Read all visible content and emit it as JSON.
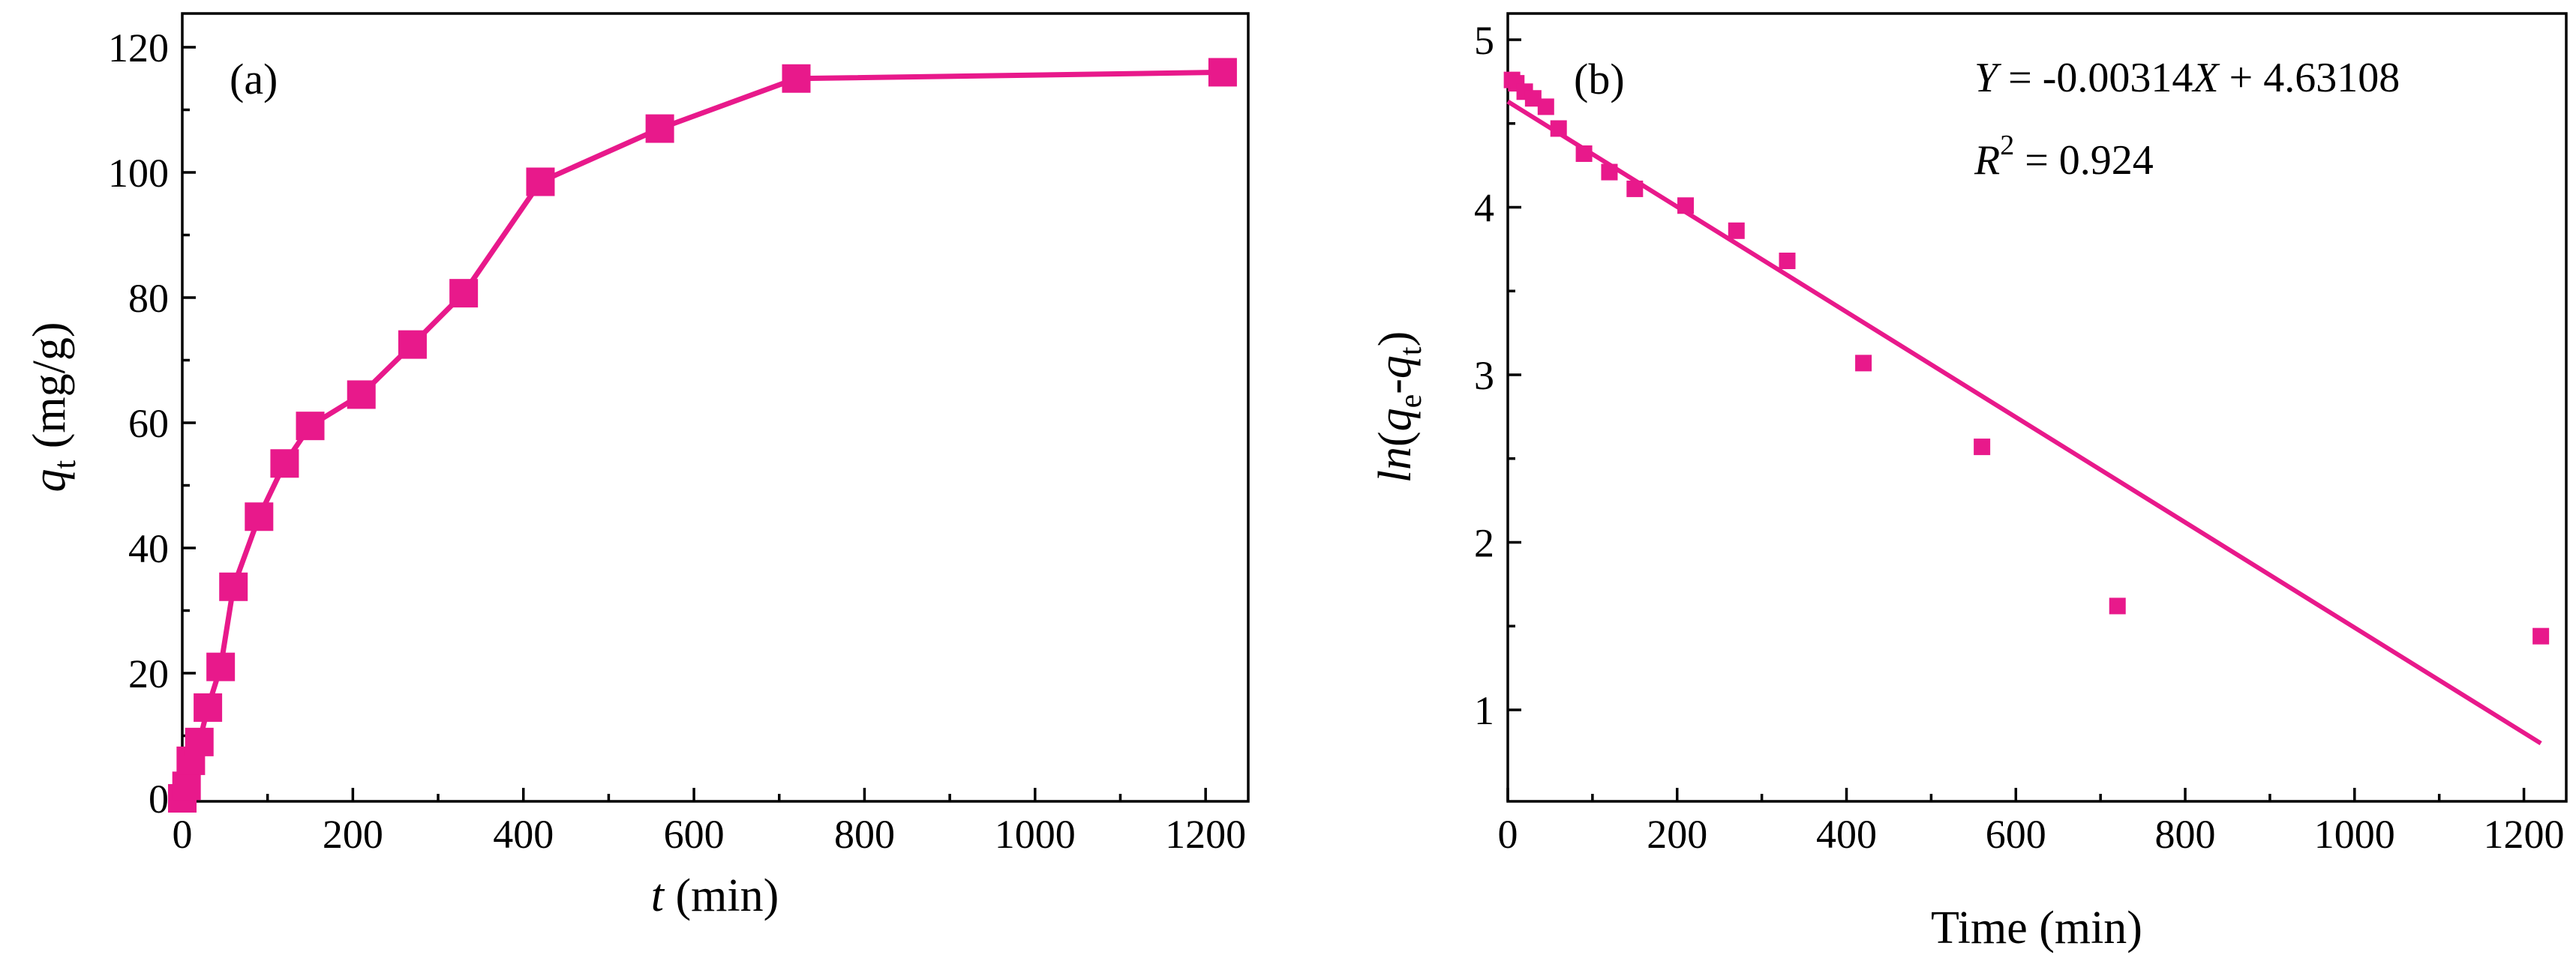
{
  "chart_data": [
    {
      "type": "line",
      "panel_label": "(a)",
      "series_color": "#E8198B",
      "marker": "square",
      "xlabel": {
        "var": "t",
        "rest": " (min)"
      },
      "ylabel": {
        "var": "q",
        "sub": "t",
        "rest": " (mg/g)"
      },
      "xlim": [
        0,
        1250
      ],
      "ylim": [
        0,
        120
      ],
      "xticks": [
        0,
        200,
        400,
        600,
        800,
        1000,
        1200
      ],
      "yticks": [
        0,
        20,
        40,
        60,
        80,
        100,
        120
      ],
      "xtick_labels": [
        "0",
        "200",
        "400",
        "600",
        "800",
        "1000",
        "1200"
      ],
      "ytick_labels": [
        "0",
        "20",
        "40",
        "60",
        "80",
        "100",
        "120"
      ],
      "x": [
        0,
        5,
        10,
        20,
        30,
        45,
        60,
        90,
        120,
        150,
        210,
        270,
        330,
        420,
        560,
        720,
        1220
      ],
      "y": [
        0,
        2,
        6,
        9,
        14.5,
        21,
        33.8,
        45,
        53.5,
        59.5,
        64.5,
        72.5,
        80.7,
        98.5,
        107,
        115,
        116
      ]
    },
    {
      "type": "scatter",
      "panel_label": "(b)",
      "series_color": "#E8198B",
      "marker": "square",
      "xlabel": "Time (min)",
      "ylabel": {
        "pre": "ln",
        "paren_open": "(",
        "var1": "q",
        "sub1": "e",
        "dash": "-",
        "var2": "q",
        "sub2": "t",
        "paren_close": ")"
      },
      "xlim": [
        0,
        1250
      ],
      "ylim": [
        0.5,
        5.2
      ],
      "xticks": [
        0,
        200,
        400,
        600,
        800,
        1000,
        1200
      ],
      "yticks": [
        1,
        2,
        3,
        4,
        5
      ],
      "xtick_labels": [
        "0",
        "200",
        "400",
        "600",
        "800",
        "1000",
        "1200"
      ],
      "ytick_labels": [
        "1",
        "2",
        "3",
        "4",
        "5"
      ],
      "x": [
        5,
        10,
        20,
        30,
        45,
        60,
        90,
        120,
        150,
        210,
        270,
        330,
        420,
        560,
        720,
        1220
      ],
      "y": [
        4.76,
        4.74,
        4.69,
        4.65,
        4.6,
        4.47,
        4.32,
        4.21,
        4.11,
        4.01,
        3.86,
        3.68,
        3.07,
        2.57,
        1.62,
        1.44
      ],
      "fit": {
        "slope": -0.00314,
        "intercept": 4.63108,
        "x_range": [
          0,
          1220
        ]
      },
      "equation": {
        "lhs": "Y",
        "mid": " = -0.00314",
        "x": "X",
        "rhs": " + 4.63108"
      },
      "r2": {
        "r": "R",
        "sup": "2",
        "rest": " = 0.924"
      }
    }
  ]
}
